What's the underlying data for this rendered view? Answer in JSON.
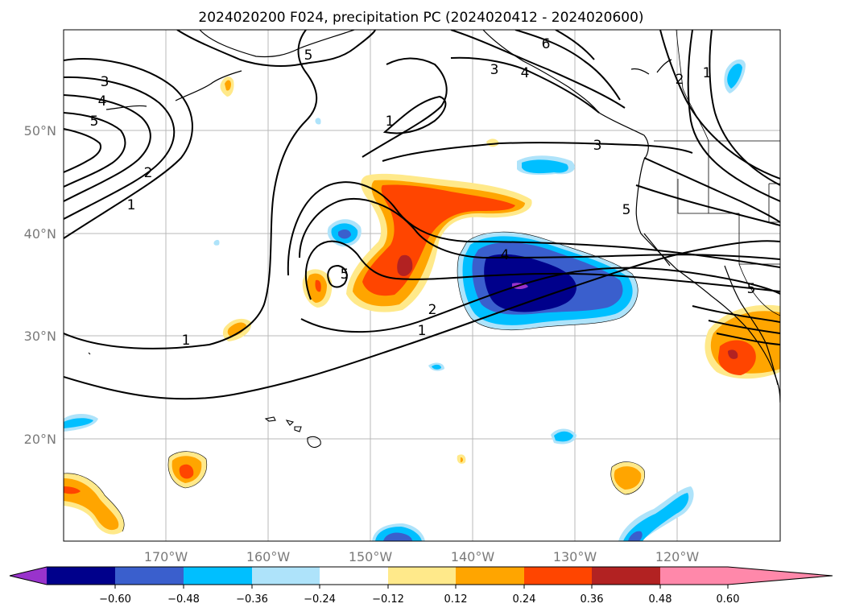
{
  "title": "2024020200 F024, precipitation PC (2024020412 - 2024020600)",
  "lat_labels": [
    "50°N",
    "40°N",
    "30°N",
    "20°N"
  ],
  "lon_labels": [
    "170°W",
    "160°W",
    "150°W",
    "140°W",
    "130°W",
    "120°W"
  ],
  "colorbar": {
    "ticks": [
      "−0.60",
      "−0.48",
      "−0.36",
      "−0.24",
      "−0.12",
      "0.12",
      "0.24",
      "0.36",
      "0.48",
      "0.60"
    ],
    "colors": [
      "#9933cc",
      "#00008b",
      "#3a5fcd",
      "#00bfff",
      "#aee3fa",
      "#ffffff",
      "#ffe98a",
      "#ffa500",
      "#ff4500",
      "#b22222",
      "#ff88aa"
    ]
  },
  "contour_labels": [
    "1",
    "2",
    "3",
    "4",
    "5",
    "6"
  ]
}
